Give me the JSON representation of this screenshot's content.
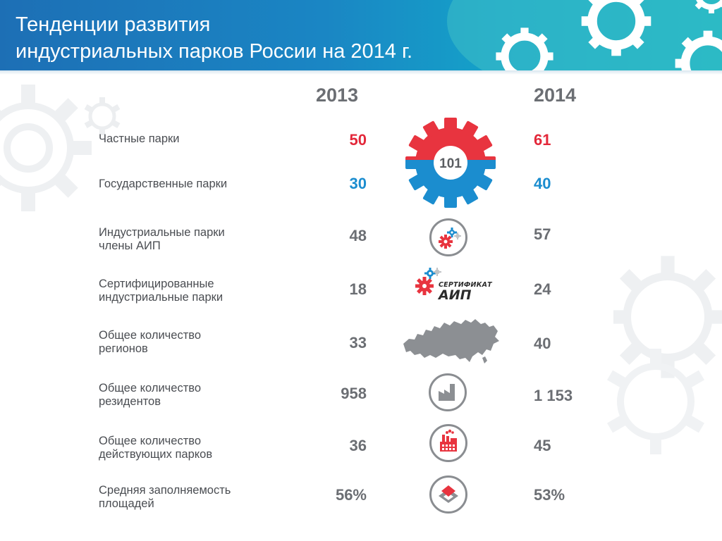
{
  "header": {
    "title": "Тенденции развития\nиндустриальных парков России на 2014 г."
  },
  "years": {
    "left": "2013",
    "right": "2014"
  },
  "center_gear": {
    "label": "101",
    "top_color": "#e8343f",
    "bottom_color": "#1b8dcf"
  },
  "certificate": {
    "line1": "СЕРТИФИКАТ",
    "line2": "АИП"
  },
  "colors": {
    "header": "#1d6fb5",
    "red": "#e3283a",
    "blue": "#1b8dcf",
    "gray": "#6b6e73"
  },
  "rows": [
    {
      "label": "Частные парки",
      "v2013": "50",
      "v2014": "61",
      "accent": "red",
      "icon": "gear-red-blue-icon"
    },
    {
      "label": "Государственные парки",
      "v2013": "30",
      "v2014": "40",
      "accent": "blue",
      "icon": "gear-red-blue-icon"
    },
    {
      "label": "Индустриальные парки\nчлены АИП",
      "v2013": "48",
      "v2014": "57",
      "icon": "gears-circle-icon"
    },
    {
      "label": "Сертифицированные\nиндустриальные парки",
      "v2013": "18",
      "v2014": "24",
      "icon": "certificate-aip-icon"
    },
    {
      "label": "Общее количество\nрегионов",
      "v2013": "33",
      "v2014": "40",
      "icon": "russia-map-icon"
    },
    {
      "label": "Общее количество\nрезидентов",
      "v2013": "958",
      "v2014": "1 153",
      "icon": "factory-circle-icon"
    },
    {
      "label": "Общее количество\nдействующих парков",
      "v2013": "36",
      "v2014": "45",
      "icon": "factory-smoke-icon"
    },
    {
      "label": "Средняя заполняемость\nплощадей",
      "v2013": "56%",
      "v2014": "53%",
      "icon": "area-diamond-icon"
    }
  ]
}
